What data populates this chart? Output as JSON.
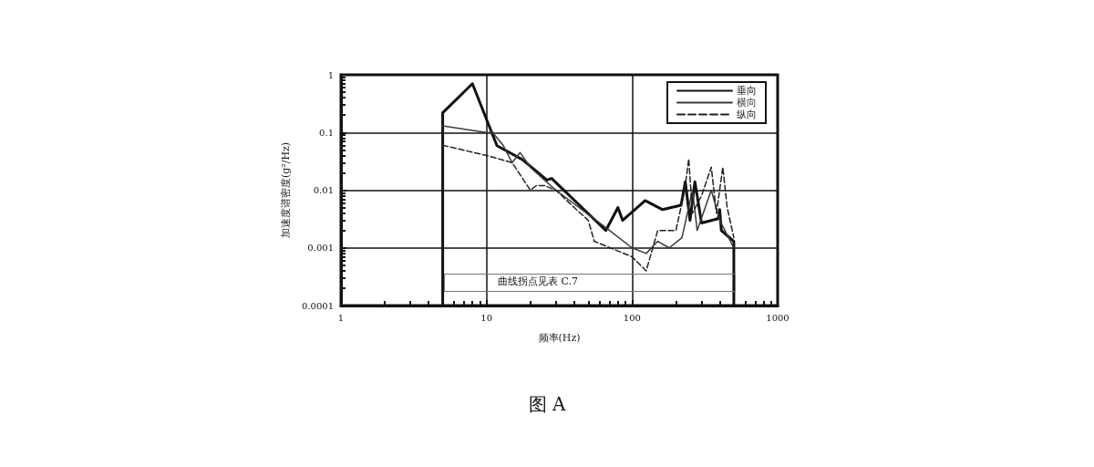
{
  "chart_data": {
    "type": "line",
    "title": "图 A",
    "xlabel": "频率(Hz)",
    "ylabel": "加速度谱密度(g²/Hz)",
    "log": "xy",
    "xlim": [
      1,
      1000
    ],
    "xticks": [
      1,
      10,
      100,
      1000
    ],
    "ylim": [
      0.0001,
      1
    ],
    "yticks": [
      0.0001,
      0.001,
      0.01,
      0.1,
      1
    ],
    "grid": true,
    "legend": "top right",
    "marker": "none",
    "annotations": [
      "曲线拐点见表 C.7"
    ],
    "series": [
      {
        "name": "垂向",
        "color": "#111111",
        "line_style": "solid",
        "x": [
          5,
          5,
          8,
          11.8,
          17.6,
          26,
          28,
          66,
          80,
          86,
          123,
          162,
          217,
          232,
          250,
          270,
          300,
          390,
          400,
          410,
          500,
          500
        ],
        "values": [
          0.0001,
          0.22,
          0.7,
          0.059,
          0.034,
          0.015,
          0.016,
          0.002,
          0.005,
          0.003,
          0.0066,
          0.0046,
          0.0055,
          0.014,
          0.003,
          0.014,
          0.0027,
          0.0032,
          0.0046,
          0.002,
          0.0013,
          0.0001
        ]
      },
      {
        "name": "横向",
        "color": "#3a3a3a",
        "line_style": "solid",
        "x": [
          5,
          10,
          11,
          13,
          15,
          17,
          20,
          25,
          30,
          70,
          100,
          125,
          150,
          180,
          220,
          260,
          280,
          350,
          400,
          500
        ],
        "values": [
          0.13,
          0.1,
          0.1,
          0.06,
          0.03,
          0.045,
          0.025,
          0.015,
          0.01,
          0.002,
          0.001,
          0.0008,
          0.0013,
          0.001,
          0.0015,
          0.01,
          0.002,
          0.01,
          0.003,
          0.001
        ]
      },
      {
        "name": "纵向",
        "color": "#222222",
        "line_style": "dashed",
        "x": [
          5,
          10,
          15,
          20,
          22,
          25,
          30,
          40,
          50,
          55,
          100,
          125,
          150,
          200,
          230,
          245,
          260,
          300,
          350,
          380,
          420,
          450,
          500
        ],
        "values": [
          0.06,
          0.04,
          0.03,
          0.01,
          0.012,
          0.012,
          0.01,
          0.005,
          0.003,
          0.0013,
          0.0007,
          0.0004,
          0.002,
          0.002,
          0.01,
          0.035,
          0.004,
          0.008,
          0.025,
          0.004,
          0.025,
          0.005,
          0.0015
        ]
      }
    ]
  }
}
